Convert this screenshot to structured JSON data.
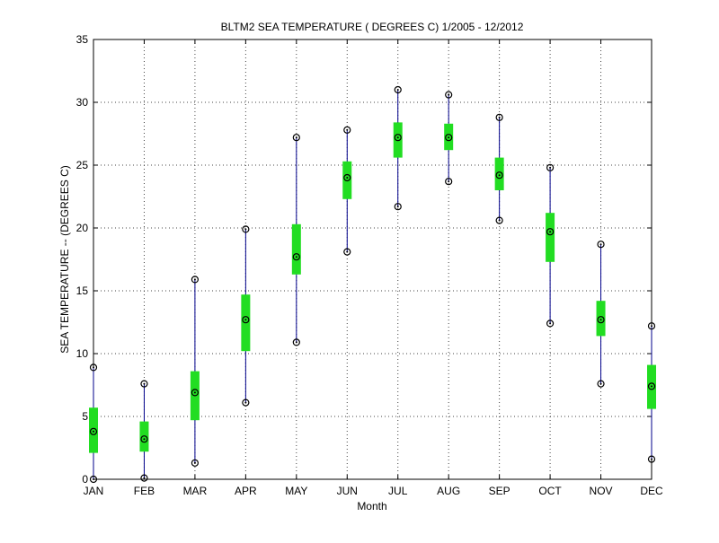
{
  "chart_data": {
    "type": "box",
    "title": "BLTM2  SEA TEMPERATURE ( DEGREES C) 1/2005 - 12/2012",
    "xlabel": "Month",
    "ylabel": "SEA TEMPERATURE -- (DEGREES C)",
    "ylim": [
      0,
      35
    ],
    "y_ticks": [
      0,
      5,
      10,
      15,
      20,
      25,
      30,
      35
    ],
    "grid": true,
    "categories": [
      "JAN",
      "FEB",
      "MAR",
      "APR",
      "MAY",
      "JUN",
      "JUL",
      "AUG",
      "SEP",
      "OCT",
      "NOV",
      "DEC"
    ],
    "series": [
      {
        "min": [
          0.0,
          0.1,
          1.3,
          6.1,
          10.9,
          18.1,
          21.7,
          23.7,
          20.6,
          12.4,
          7.6,
          1.6
        ],
        "q1": [
          2.1,
          2.2,
          4.7,
          10.2,
          16.3,
          22.3,
          25.6,
          26.2,
          23.0,
          17.3,
          11.4,
          5.6
        ],
        "median": [
          3.8,
          3.2,
          6.9,
          12.7,
          17.7,
          24.0,
          27.2,
          27.2,
          24.2,
          19.7,
          12.7,
          7.4
        ],
        "q3": [
          5.7,
          4.6,
          8.6,
          14.7,
          20.3,
          25.3,
          28.4,
          28.3,
          25.6,
          21.2,
          14.2,
          9.1
        ],
        "max": [
          8.9,
          7.6,
          15.9,
          19.9,
          27.2,
          27.8,
          31.0,
          30.6,
          28.8,
          24.8,
          18.7,
          12.2
        ]
      }
    ],
    "colors": {
      "whisker": "#00008b",
      "box": "#22dd22",
      "marker": "#000000",
      "grid": "#444444",
      "axis": "#000000"
    }
  }
}
